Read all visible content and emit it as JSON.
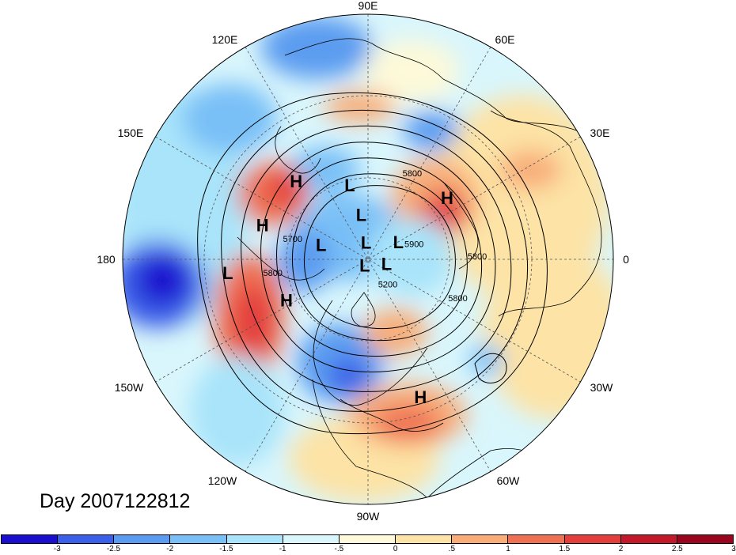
{
  "map": {
    "longitude_labels": [
      "90E",
      "60E",
      "30E",
      "0",
      "30W",
      "60W",
      "90W",
      "120W",
      "150W",
      "180",
      "150E",
      "120E"
    ],
    "pressure_centers": [
      {
        "label": "L",
        "lon": 105,
        "lat": 58
      },
      {
        "label": "H",
        "lon": 135,
        "lat": 45
      },
      {
        "label": "L",
        "lon": 100,
        "lat": 72
      },
      {
        "label": "H",
        "lon": 165,
        "lat": 42
      },
      {
        "label": "L",
        "lon": 170,
        "lat": 68
      },
      {
        "label": "L",
        "lon": 100,
        "lat": 85
      },
      {
        "label": "L",
        "lon": -30,
        "lat": 80
      },
      {
        "label": "L",
        "lon": -105,
        "lat": 84
      },
      {
        "label": "L",
        "lon": 20,
        "lat": 75
      },
      {
        "label": "H",
        "lon": 35,
        "lat": 47
      },
      {
        "label": "L",
        "lon": -172,
        "lat": 30
      },
      {
        "label": "H",
        "lon": -150,
        "lat": 48
      },
      {
        "label": "H",
        "lon": -70,
        "lat": 26
      }
    ],
    "contour_labels": [
      {
        "text": "5800",
        "lon": 62,
        "lat": 48
      },
      {
        "text": "5700",
        "lon": 167,
        "lat": 55
      },
      {
        "text": "5800",
        "lon": -170,
        "lat": 47
      },
      {
        "text": "5900",
        "lon": 15,
        "lat": 68
      },
      {
        "text": "5800",
        "lon": 0,
        "lat": 42
      },
      {
        "text": "5200",
        "lon": -55,
        "lat": 74
      },
      {
        "text": "5800",
        "lon": -25,
        "lat": 46
      }
    ]
  },
  "date_label": "Day 2007122812",
  "colorbar": {
    "colors": [
      "#1a0fcf",
      "#3a5fe8",
      "#5b9cf0",
      "#79c0f7",
      "#a9e4fa",
      "#d9f6fc",
      "#fdf9d9",
      "#fde3a6",
      "#f8ad79",
      "#ef7153",
      "#e33e3c",
      "#c4192b",
      "#99061d"
    ],
    "tick_labels": [
      "-3",
      "-2.5",
      "-2",
      "-1.5",
      "-1",
      "-.5",
      "0",
      ".5",
      "1",
      "1.5",
      "2",
      "2.5",
      "3"
    ]
  }
}
